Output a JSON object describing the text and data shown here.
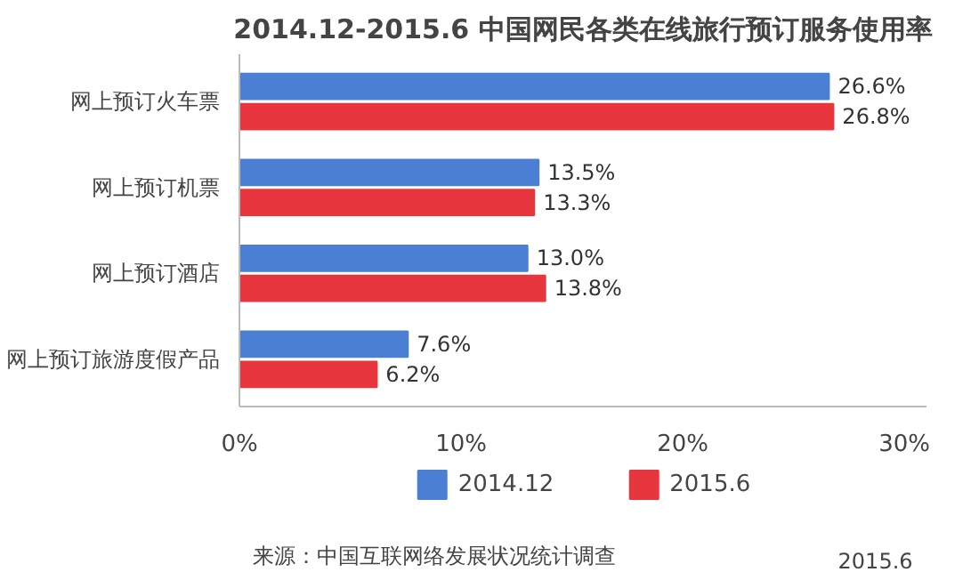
{
  "chart_data": {
    "type": "bar",
    "orientation": "horizontal",
    "title": "2014.12-2015.6 中国网民各类在线旅行预订服务使用率",
    "categories": [
      "网上预订火车票",
      "网上预订机票",
      "网上预订酒店",
      "网上预订旅游度假产品"
    ],
    "series": [
      {
        "name": "2014.12",
        "color": "#4a7fd4",
        "values": [
          26.6,
          13.5,
          13.0,
          7.6
        ],
        "value_labels": [
          "26.6%",
          "13.5%",
          "13.0%",
          "7.6%"
        ]
      },
      {
        "name": "2015.6",
        "color": "#e8363e",
        "values": [
          26.8,
          13.3,
          13.8,
          6.2
        ],
        "value_labels": [
          "26.8%",
          "13.3%",
          "13.8%",
          "6.2%"
        ]
      }
    ],
    "xlim": [
      0,
      31
    ],
    "xticks": [
      {
        "value": 0,
        "label": "0%"
      },
      {
        "value": 10,
        "label": "10%"
      },
      {
        "value": 20,
        "label": "20%"
      },
      {
        "value": 30,
        "label": "30%"
      }
    ],
    "grid": false,
    "legend": "bottom",
    "annotations": [
      "来源：中国互联网络发展状况统计调查",
      "2015.6"
    ]
  }
}
